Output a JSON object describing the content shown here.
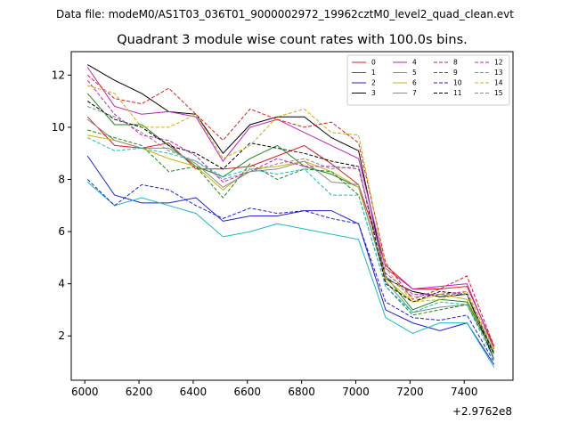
{
  "chart_data": {
    "type": "line",
    "header": "Data file: modeM0/AS1T03_036T01_9000002972_19962cztM0_level2_quad_clean.evt",
    "title": "Quadrant 3 module wise count rates with 100.0s bins.",
    "xlabel": "",
    "ylabel": "",
    "x_offset_label": "+2.9762e8",
    "xlim": [
      5950,
      7580
    ],
    "ylim": [
      0.3,
      12.9
    ],
    "x_ticks": [
      6000,
      6200,
      6400,
      6600,
      6800,
      7000,
      7200,
      7400
    ],
    "y_ticks": [
      2,
      4,
      6,
      8,
      10,
      12
    ],
    "legend_location": "top-right",
    "x": [
      6010,
      6110,
      6210,
      6310,
      6410,
      6510,
      6610,
      6710,
      6810,
      6910,
      7010,
      7110,
      7210,
      7310,
      7410,
      7510
    ],
    "series": [
      {
        "name": "0",
        "color": "#e41a1c",
        "style": "solid",
        "values": [
          10.4,
          9.3,
          9.2,
          9.4,
          8.4,
          8.4,
          8.5,
          8.9,
          9.3,
          8.6,
          7.8,
          4.7,
          3.8,
          3.8,
          3.9,
          1.6
        ]
      },
      {
        "name": "1",
        "color": "#1a8a1a",
        "style": "solid",
        "values": [
          11.3,
          10.1,
          10.1,
          9.3,
          8.5,
          8.1,
          8.8,
          9.3,
          8.5,
          8.2,
          7.7,
          4.3,
          3.0,
          3.4,
          3.3,
          1.4
        ]
      },
      {
        "name": "2",
        "color": "#1f1fd6",
        "style": "solid",
        "values": [
          8.9,
          7.4,
          7.1,
          7.1,
          7.3,
          6.4,
          6.6,
          6.6,
          6.8,
          6.8,
          6.3,
          3.0,
          2.5,
          2.2,
          2.5,
          0.9
        ]
      },
      {
        "name": "3",
        "color": "#000000",
        "style": "solid",
        "values": [
          12.4,
          11.8,
          11.3,
          10.6,
          10.5,
          9.0,
          10.1,
          10.4,
          10.4,
          9.6,
          9.1,
          4.2,
          3.7,
          3.5,
          3.6,
          1.1
        ]
      },
      {
        "name": "4",
        "color": "#c21ec2",
        "style": "solid",
        "values": [
          12.3,
          10.8,
          10.5,
          10.6,
          10.4,
          8.7,
          10.0,
          10.3,
          9.8,
          9.3,
          8.8,
          4.6,
          3.8,
          3.9,
          4.0,
          1.5
        ]
      },
      {
        "name": "5",
        "color": "#17bcc4",
        "style": "solid",
        "values": [
          7.9,
          7.0,
          7.3,
          7.0,
          6.7,
          5.8,
          6.0,
          6.3,
          6.1,
          5.9,
          5.7,
          2.7,
          2.1,
          2.5,
          2.5,
          0.8
        ]
      },
      {
        "name": "6",
        "color": "#c9b400",
        "style": "solid",
        "values": [
          9.7,
          9.5,
          9.2,
          8.8,
          8.5,
          7.6,
          8.4,
          8.5,
          8.7,
          8.3,
          7.7,
          4.2,
          3.3,
          3.6,
          3.4,
          1.4
        ]
      },
      {
        "name": "7",
        "color": "#8a8a8a",
        "style": "solid",
        "values": [
          10.3,
          9.5,
          9.2,
          9.2,
          8.6,
          7.7,
          8.3,
          8.4,
          8.7,
          7.9,
          7.8,
          4.1,
          2.9,
          3.1,
          3.2,
          1.3
        ]
      },
      {
        "name": "8",
        "color": "#e41a1c",
        "style": "dashed",
        "values": [
          12.0,
          11.1,
          10.9,
          11.5,
          10.5,
          9.5,
          10.7,
          10.3,
          10.0,
          10.2,
          9.4,
          4.8,
          3.4,
          3.8,
          4.3,
          1.6
        ]
      },
      {
        "name": "9",
        "color": "#1a8a1a",
        "style": "dashed",
        "values": [
          9.9,
          9.6,
          9.3,
          8.3,
          8.5,
          7.3,
          8.6,
          8.0,
          8.4,
          8.3,
          7.4,
          3.9,
          2.8,
          3.0,
          3.2,
          1.3
        ]
      },
      {
        "name": "10",
        "color": "#1f1fd6",
        "style": "dashed",
        "values": [
          8.0,
          7.0,
          7.8,
          7.6,
          7.0,
          6.5,
          6.9,
          6.7,
          6.8,
          6.5,
          6.3,
          3.3,
          2.7,
          2.6,
          2.8,
          1.0
        ]
      },
      {
        "name": "11",
        "color": "#000000",
        "style": "dashed",
        "values": [
          11.0,
          10.3,
          10.0,
          9.3,
          9.0,
          8.4,
          9.4,
          9.2,
          9.0,
          8.7,
          8.5,
          4.0,
          3.3,
          3.7,
          3.6,
          1.3
        ]
      },
      {
        "name": "12",
        "color": "#c21ec2",
        "style": "dashed",
        "values": [
          11.8,
          10.5,
          9.7,
          9.5,
          8.9,
          7.9,
          8.3,
          8.8,
          8.5,
          8.5,
          8.4,
          4.4,
          3.6,
          3.6,
          3.7,
          1.5
        ]
      },
      {
        "name": "13",
        "color": "#17bcc4",
        "style": "dashed",
        "values": [
          9.6,
          9.1,
          9.2,
          9.0,
          8.7,
          8.1,
          8.4,
          8.2,
          8.4,
          7.4,
          7.4,
          3.9,
          2.9,
          3.3,
          3.2,
          1.1
        ]
      },
      {
        "name": "14",
        "color": "#c9b400",
        "style": "dashed",
        "values": [
          11.6,
          11.3,
          10.0,
          10.0,
          10.5,
          8.8,
          9.3,
          10.4,
          10.7,
          9.8,
          9.7,
          4.6,
          3.3,
          3.4,
          3.7,
          1.5
        ]
      },
      {
        "name": "15",
        "color": "#8a8a8a",
        "style": "dashed",
        "values": [
          10.8,
          10.4,
          9.8,
          9.1,
          8.7,
          8.0,
          8.3,
          8.6,
          8.8,
          8.4,
          8.5,
          4.3,
          3.5,
          3.6,
          3.6,
          1.4
        ]
      }
    ]
  }
}
